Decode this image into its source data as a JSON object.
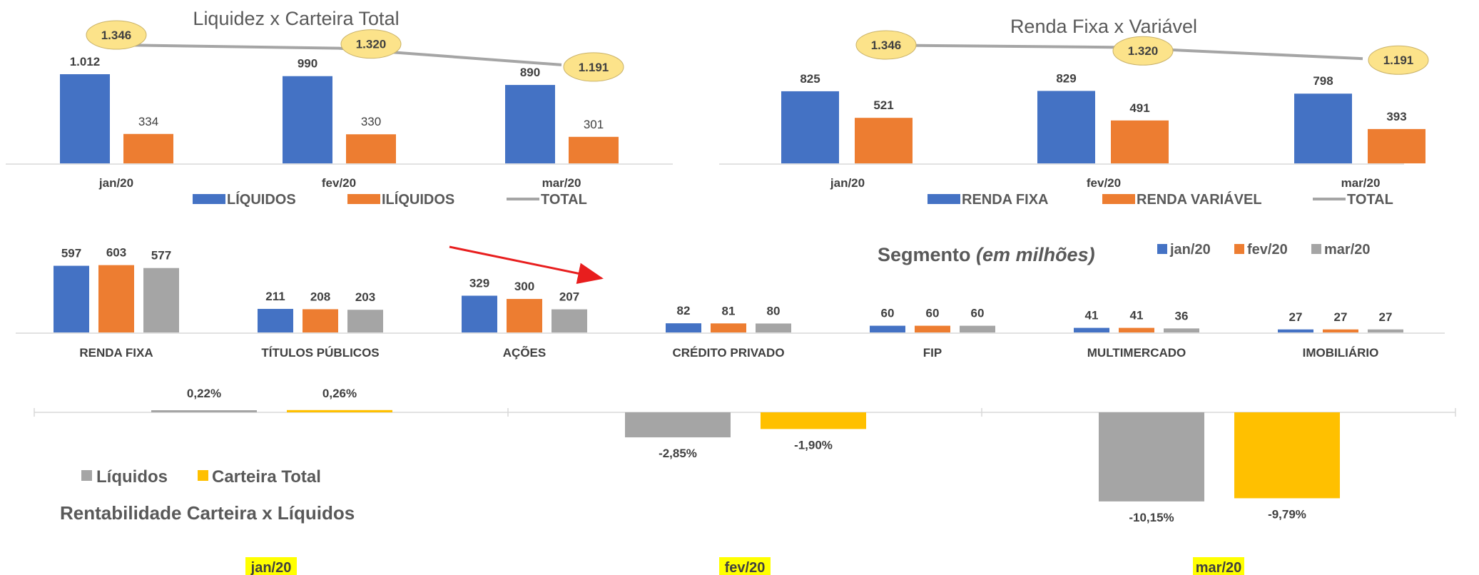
{
  "colors": {
    "blue": "#4472C4",
    "orange": "#ED7D31",
    "gray": "#A5A5A5",
    "gray_line": "#A5A5A5",
    "gold": "#FFC000",
    "bubble": "#FCE38A",
    "highlight": "#FFFF00",
    "arrow": "#E81E1E",
    "axis": "#D9D9D9"
  },
  "chart_data": [
    {
      "id": "liquidez",
      "type": "bar",
      "title": "Liquidez x Carteira Total",
      "categories": [
        "jan/20",
        "fev/20",
        "mar/20"
      ],
      "series": [
        {
          "name": "LÍQUIDOS",
          "values": [
            1012,
            990,
            890
          ],
          "labels": [
            "1.012",
            "990",
            "890"
          ],
          "bold_labels": true
        },
        {
          "name": "ILÍQUIDOS",
          "values": [
            334,
            330,
            301
          ],
          "labels": [
            "334",
            "330",
            "301"
          ],
          "bold_labels": false
        }
      ],
      "line_series": {
        "name": "TOTAL",
        "values": [
          1346,
          1320,
          1191
        ],
        "labels": [
          "1.346",
          "1.320",
          "1.191"
        ]
      },
      "legend_position": "bottom"
    },
    {
      "id": "renda",
      "type": "bar",
      "title": "Renda Fixa x Variável",
      "categories": [
        "jan/20",
        "fev/20",
        "mar/20"
      ],
      "series": [
        {
          "name": "RENDA FIXA",
          "values": [
            825,
            829,
            798
          ],
          "labels": [
            "825",
            "829",
            "798"
          ],
          "bold_labels": true
        },
        {
          "name": "RENDA VARIÁVEL",
          "values": [
            521,
            491,
            393
          ],
          "labels": [
            "521",
            "491",
            "393"
          ],
          "bold_labels": true
        }
      ],
      "line_series": {
        "name": "TOTAL",
        "values": [
          1346,
          1320,
          1191
        ],
        "labels": [
          "1.346",
          "1.320",
          "1.191"
        ]
      },
      "legend_position": "bottom"
    },
    {
      "id": "segmento",
      "type": "bar",
      "title": "Segmento",
      "title_suffix": "(em milhões)",
      "categories": [
        "RENDA FIXA",
        "TÍTULOS PÚBLICOS",
        "AÇÕES",
        "CRÉDITO PRIVADO",
        "FIP",
        "MULTIMERCADO",
        "IMOBILIÁRIO"
      ],
      "series": [
        {
          "name": "jan/20",
          "values": [
            597,
            211,
            329,
            82,
            60,
            41,
            27
          ]
        },
        {
          "name": "fev/20",
          "values": [
            603,
            208,
            300,
            81,
            60,
            41,
            27
          ]
        },
        {
          "name": "mar/20",
          "values": [
            577,
            203,
            207,
            80,
            60,
            36,
            27
          ]
        }
      ],
      "legend_position": "top-right"
    },
    {
      "id": "rentabilidade",
      "type": "bar",
      "title": "Rentabilidade Carteira x Líquidos",
      "categories": [
        "jan/20",
        "fev/20",
        "mar/20"
      ],
      "series": [
        {
          "name": "Líquidos",
          "values": [
            0.22,
            -2.85,
            -10.15
          ],
          "labels": [
            "0,22%",
            "-2,85%",
            "-10,15%"
          ]
        },
        {
          "name": "Carteira Total",
          "values": [
            0.26,
            -1.9,
            -9.79
          ],
          "labels": [
            "0,26%",
            "-1,90%",
            "-9,79%"
          ]
        }
      ],
      "legend_position": "bottom-left"
    }
  ]
}
